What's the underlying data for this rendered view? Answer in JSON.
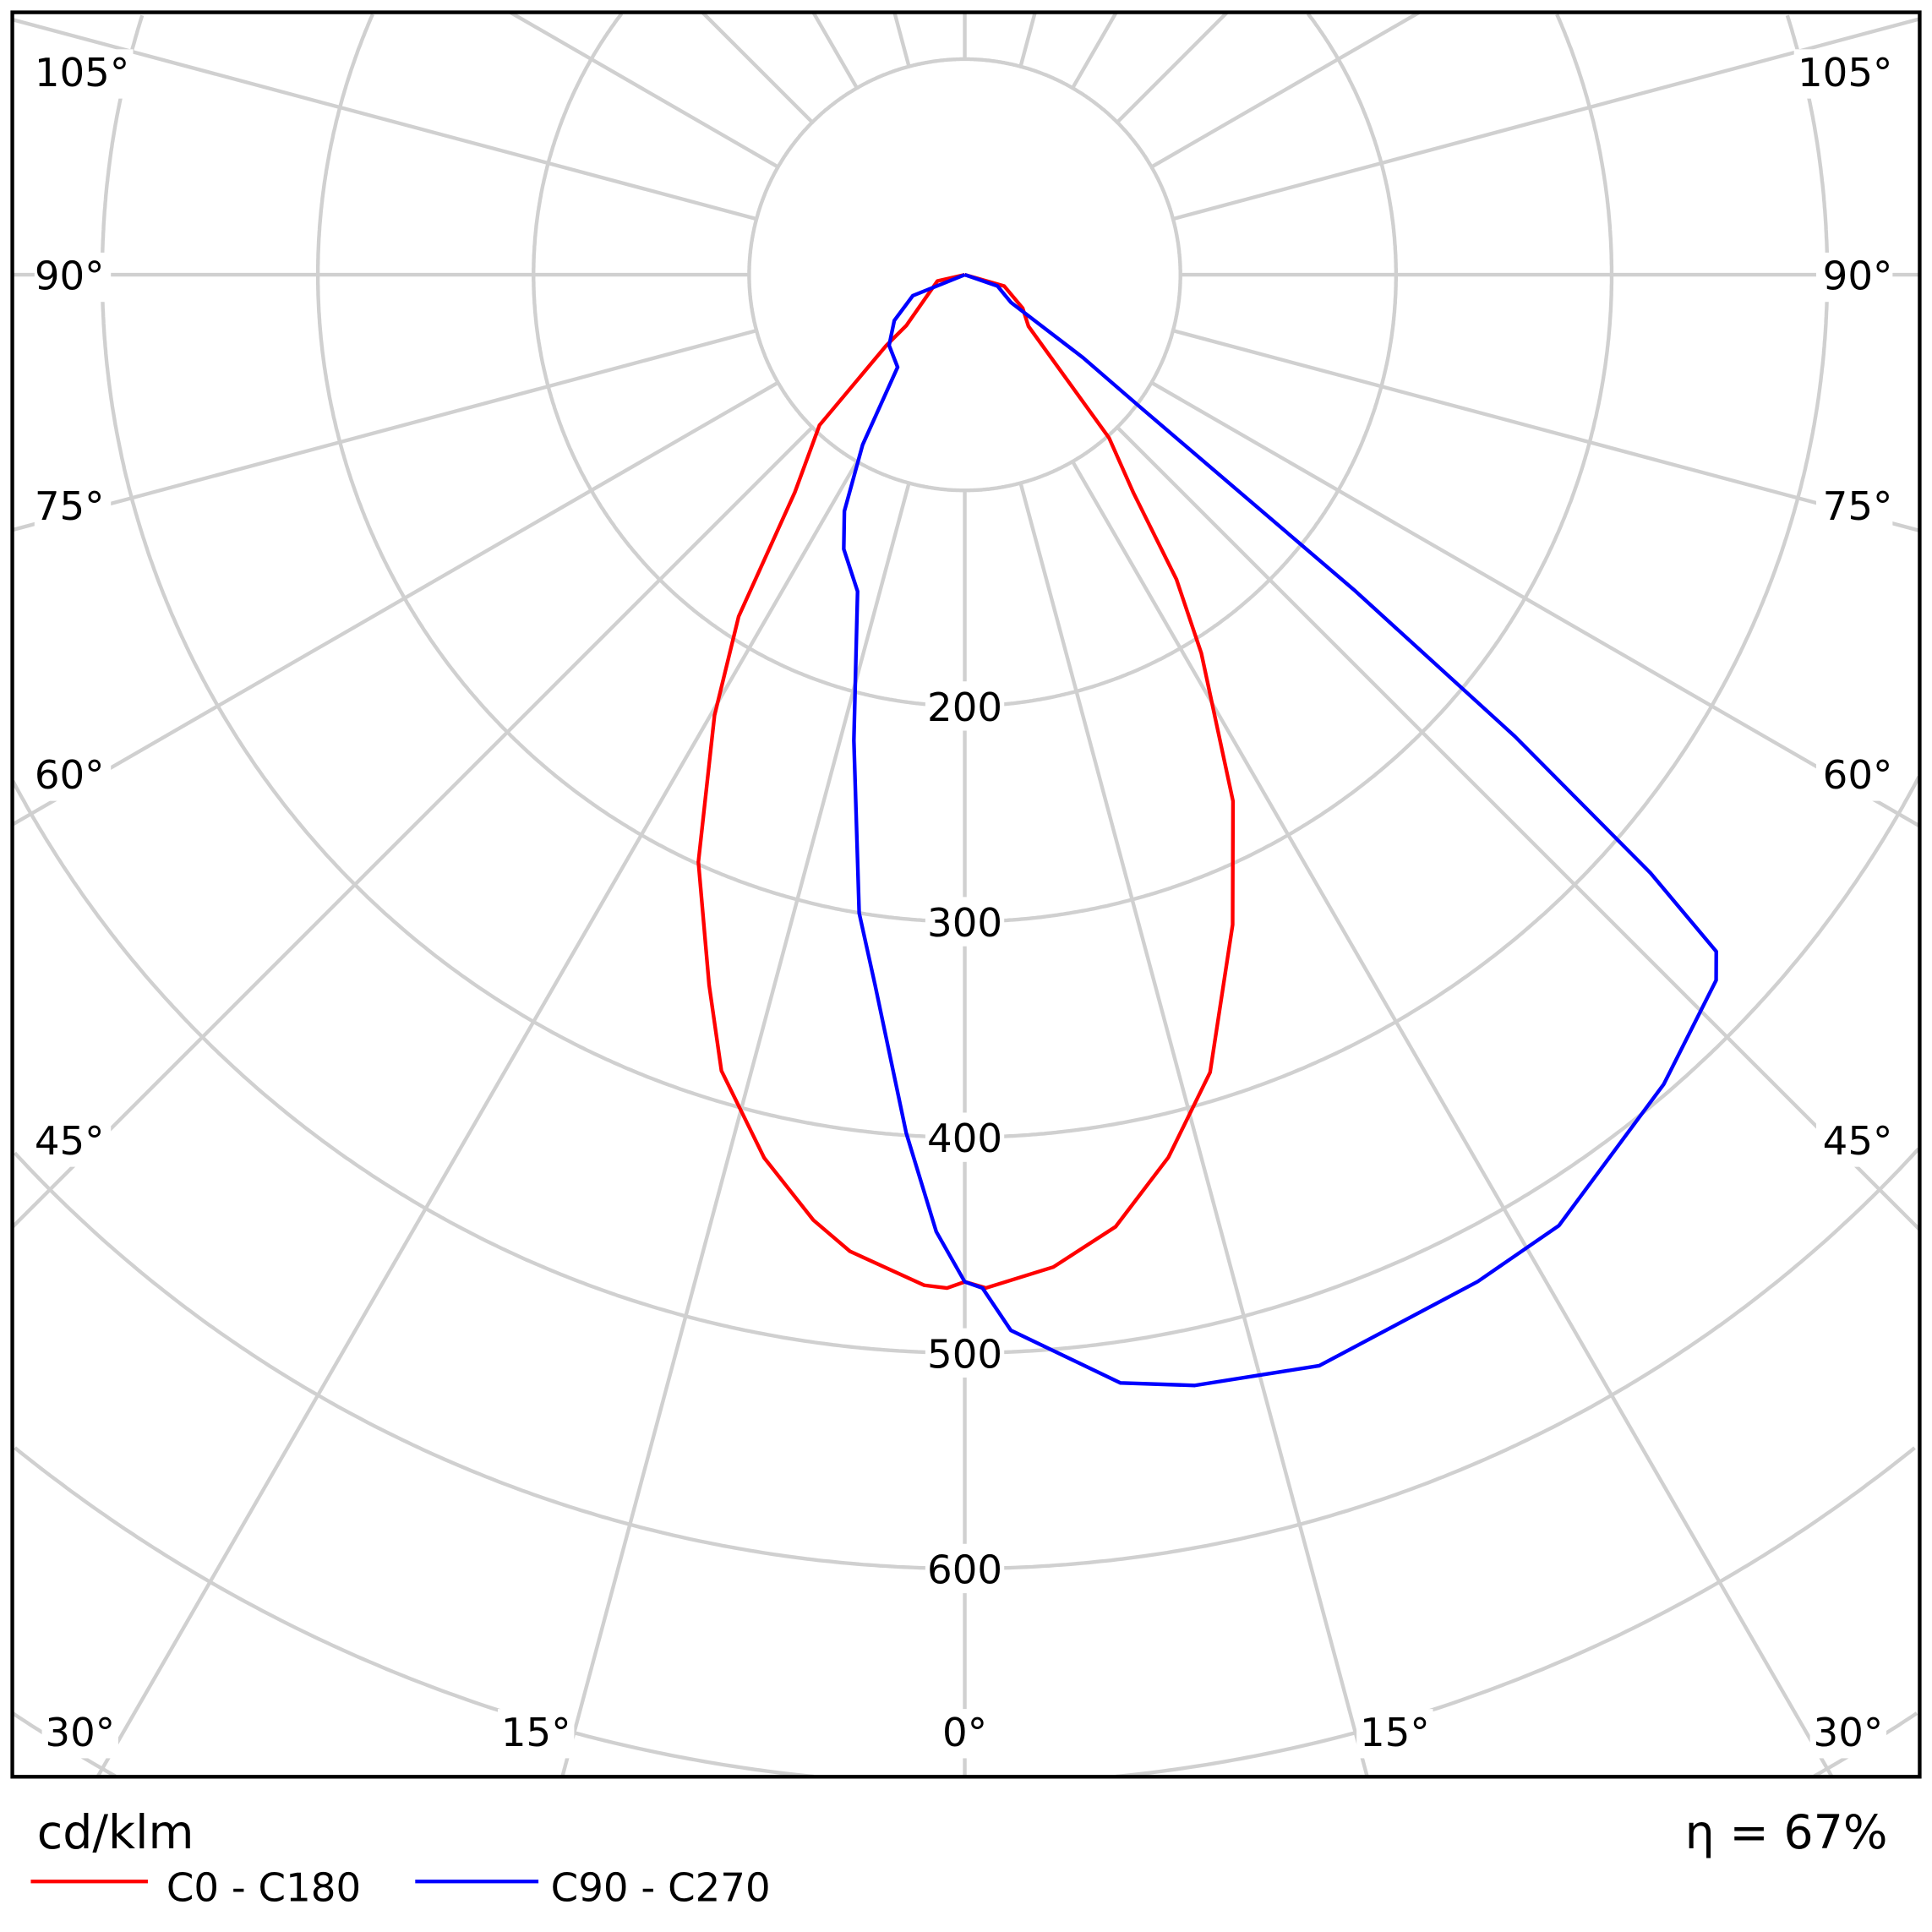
{
  "chart_data": {
    "type": "polar-line",
    "unit_label": "cd/klm",
    "efficiency_label": "η = 67%",
    "radial_ticks": [
      200,
      300,
      400,
      500,
      600
    ],
    "radial_tick_labels": [
      "200",
      "300",
      "400",
      "500",
      "600"
    ],
    "ring_values": [
      100,
      200,
      300,
      400,
      500,
      600,
      700,
      800
    ],
    "angle_tick_labels": {
      "left": [
        "105°",
        "90°",
        "75°",
        "60°",
        "45°",
        "30°",
        "15°"
      ],
      "bottom": [
        "0°"
      ],
      "right": [
        "15°",
        "30°",
        "45°",
        "60°",
        "75°",
        "90°",
        "105°"
      ]
    },
    "grid": true,
    "legend_placement": "bottom-left",
    "series": [
      {
        "name": "C0 - C180",
        "color": "#ff0000",
        "points": [
          [
            -90,
            0
          ],
          [
            -77,
            13
          ],
          [
            -49,
            36
          ],
          [
            -48,
            49
          ],
          [
            -44,
            97
          ],
          [
            -38,
            128
          ],
          [
            -33.5,
            190
          ],
          [
            -29.6,
            235
          ],
          [
            -24.4,
            299
          ],
          [
            -19.8,
            350
          ],
          [
            -17,
            386
          ],
          [
            -12.8,
            420
          ],
          [
            -9.1,
            444
          ],
          [
            -6.7,
            456
          ],
          [
            -2.3,
            469
          ],
          [
            -1,
            470
          ],
          [
            0,
            467
          ],
          [
            1.2,
            470
          ],
          [
            5.1,
            462
          ],
          [
            9,
            447
          ],
          [
            13,
            420
          ],
          [
            17.1,
            387
          ],
          [
            22.4,
            326
          ],
          [
            27,
            274
          ],
          [
            32,
            207
          ],
          [
            34.8,
            172
          ],
          [
            37.7,
            128
          ],
          [
            41.5,
            101
          ],
          [
            51,
            38
          ],
          [
            60,
            31
          ],
          [
            74,
            19
          ],
          [
            90,
            0
          ]
        ]
      },
      {
        "name": "C90 - C270",
        "color": "#0000ff",
        "points": [
          [
            -90,
            0
          ],
          [
            -68,
            26
          ],
          [
            -57,
            39
          ],
          [
            -47,
            48
          ],
          [
            -36,
            53
          ],
          [
            -31,
            92
          ],
          [
            -27,
            123
          ],
          [
            -23.8,
            139
          ],
          [
            -18.7,
            155
          ],
          [
            -13.4,
            222
          ],
          [
            -9.4,
            300
          ],
          [
            -7.2,
            332
          ],
          [
            -3.9,
            399
          ],
          [
            -1.7,
            444
          ],
          [
            0,
            467
          ],
          [
            1,
            470
          ],
          [
            2.5,
            490
          ],
          [
            8,
            519
          ],
          [
            11.7,
            526
          ],
          [
            18,
            532
          ],
          [
            27,
            524
          ],
          [
            32,
            520
          ],
          [
            40.8,
            496
          ],
          [
            46.8,
            478
          ],
          [
            48,
            469
          ],
          [
            48.9,
            422
          ],
          [
            50,
            333
          ],
          [
            51,
            233
          ],
          [
            53,
            101
          ],
          [
            55,
            67
          ],
          [
            59,
            25
          ],
          [
            71,
            16
          ],
          [
            90,
            0
          ]
        ]
      }
    ]
  }
}
